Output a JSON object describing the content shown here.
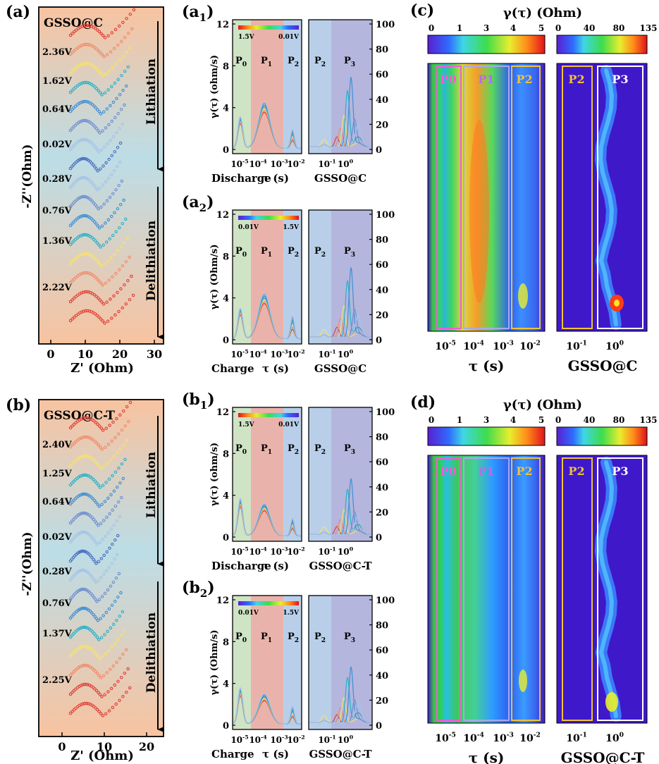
{
  "panels": {
    "a": {
      "letter": "(a)",
      "sample": "GSSO@C",
      "ylabel": "-Z''(Ohm)",
      "xlabel": "Z' (Ohm)",
      "xticks": [
        "0",
        "10",
        "20",
        "30"
      ],
      "arrow_top": "Lithiation",
      "arrow_bottom": "Delithiation",
      "voltages": [
        "2.36V",
        "1.62V",
        "0.64V",
        "0.02V",
        "0.28V",
        "0.76V",
        "1.36V",
        "2.22V"
      ]
    },
    "b": {
      "letter": "(b)",
      "sample": "GSSO@C-T",
      "ylabel": "-Z''(Ohm)",
      "xlabel": "Z' (Ohm)",
      "xticks": [
        "0",
        "10",
        "20"
      ],
      "arrow_top": "Lithiation",
      "arrow_bottom": "Delithiation",
      "voltages": [
        "2.40V",
        "1.25V",
        "0.64V",
        "0.02V",
        "0.28V",
        "0.76V",
        "1.37V",
        "2.25V"
      ]
    },
    "a1": {
      "letter": "(a",
      "sub": "1",
      "close": ")",
      "mode": "Discharge",
      "sample": "GSSO@C",
      "ylabel": "γ(τ) (ohm/s)",
      "cb_left": "1.5V",
      "cb_right": "0.01V"
    },
    "a2": {
      "letter": "(a",
      "sub": "2",
      "close": ")",
      "mode": "Charge",
      "sample": "GSSO@C",
      "ylabel": "γ(τ) (Ohm/s)",
      "cb_left": "0.01V",
      "cb_right": "1.5V"
    },
    "b1": {
      "letter": "(b",
      "sub": "1",
      "close": ")",
      "mode": "Discharge",
      "sample": "GSSO@C-T",
      "ylabel": "γ(τ) (ohm/s)",
      "cb_left": "1.5V",
      "cb_right": "0.01V"
    },
    "b2": {
      "letter": "(b",
      "sub": "2",
      "close": ")",
      "mode": "Charge",
      "sample": "GSSO@C-T",
      "ylabel": "γ(τ) (Ohm/s)",
      "cb_left": "0.01V",
      "cb_right": "1.5V"
    },
    "c": {
      "letter": "(c)",
      "title": "γ(τ) (Ohm)",
      "sample": "GSSO@C",
      "xlabel": "τ (s)"
    },
    "d": {
      "letter": "(d)",
      "title": "γ(τ) (Ohm)",
      "sample": "GSSO@C-T",
      "xlabel": "τ (s)"
    }
  },
  "common": {
    "tau_label": "τ (s)",
    "left_yticks": [
      "0",
      "4",
      "8",
      "12"
    ],
    "right_yticks": [
      "0",
      "20",
      "40",
      "60",
      "80",
      "100"
    ],
    "tau_ticks": [
      "10",
      "10",
      "10",
      "10"
    ],
    "tau_exps": [
      "-5",
      "-4",
      "-3",
      "-2"
    ],
    "tau2_ticks": [
      "10",
      "10"
    ],
    "tau2_exps": [
      "-1",
      "0"
    ],
    "peaks_left": [
      "P",
      "P",
      "P"
    ],
    "peaks_left_sub": [
      "0",
      "1",
      "2"
    ],
    "peaks_right": [
      "P",
      "P"
    ],
    "peaks_right_sub": [
      "2",
      "3"
    ],
    "cb1_ticks": [
      "0",
      "1",
      "3",
      "4",
      "5"
    ],
    "cb2_ticks": [
      "0",
      "40",
      "80",
      "135"
    ],
    "map_labels_left": [
      "P0",
      "P1",
      "P2"
    ],
    "map_labels_right": [
      "P2",
      "P3"
    ]
  },
  "colors": {
    "eis_bg_top": "#f6c7a8",
    "eis_bg_mid": "#b9dbe5",
    "shade_p0": "#cfe3c5",
    "shade_p1": "#e9b3ab",
    "shade_p2": "#b9cfe9",
    "shade_p3": "#b5b6dd",
    "curve_colors": [
      "#e0403a",
      "#f08c6a",
      "#f5e36a",
      "#27b2c8",
      "#3e8fd4",
      "#6f8fd0",
      "#a6c4e8",
      "#4a6fc0"
    ]
  },
  "chart_data": [
    {
      "id": "a",
      "type": "scatter",
      "title": "GSSO@C",
      "xlabel": "Z' (Ohm)",
      "ylabel": "-Z''(Ohm)",
      "xlim": [
        -5,
        32
      ],
      "series_voltages": [
        "2.36V",
        "1.62V",
        "0.64V",
        "0.02V",
        "0.28V",
        "0.76V",
        "1.36V",
        "2.22V"
      ],
      "offsets": [
        "stacked"
      ]
    },
    {
      "id": "b",
      "type": "scatter",
      "title": "GSSO@C-T",
      "xlabel": "Z' (Ohm)",
      "ylabel": "-Z''(Ohm)",
      "xlim": [
        -5,
        22
      ],
      "series_voltages": [
        "2.40V",
        "1.25V",
        "0.64V",
        "0.02V",
        "0.28V",
        "0.76V",
        "1.37V",
        "2.25V"
      ]
    },
    {
      "id": "a1",
      "type": "line",
      "xlabel": "τ (s)",
      "ylabel": "γ(τ) (ohm/s)",
      "ylim_left": [
        0,
        12
      ],
      "ylim_right": [
        0,
        100
      ],
      "peaks": {
        "P0": [
          2.7
        ],
        "P1": [
          4.3
        ],
        "P2": [
          1.5
        ]
      }
    },
    {
      "id": "a2",
      "type": "line",
      "xlabel": "τ (s)",
      "ylabel": "γ(τ) (Ohm/s)",
      "ylim_left": [
        0,
        12
      ],
      "ylim_right": [
        0,
        100
      ],
      "peaks": {
        "P0": [
          2.6
        ],
        "P1": [
          4.2
        ],
        "P2": [
          1.8
        ]
      }
    },
    {
      "id": "b1",
      "type": "line",
      "xlabel": "τ (s)",
      "ylabel": "γ(τ) (ohm/s)",
      "ylim_left": [
        0,
        12
      ],
      "ylim_right": [
        0,
        100
      ],
      "peaks": {
        "P0": [
          3.2
        ],
        "P1": [
          3.0
        ],
        "P2": [
          1.4
        ]
      }
    },
    {
      "id": "b2",
      "type": "line",
      "xlabel": "τ (s)",
      "ylabel": "γ(τ) (Ohm/s)",
      "ylim_left": [
        0,
        12
      ],
      "ylim_right": [
        0,
        100
      ],
      "peaks": {
        "P0": [
          3.1
        ],
        "P1": [
          2.8
        ],
        "P2": [
          1.4
        ]
      }
    },
    {
      "id": "c",
      "type": "heatmap",
      "title": "γ(τ) (Ohm)",
      "xlabel": "τ (s)",
      "colorbar_left": [
        0,
        5
      ],
      "colorbar_right": [
        0,
        135
      ]
    },
    {
      "id": "d",
      "type": "heatmap",
      "title": "γ(τ) (Ohm)",
      "xlabel": "τ (s)",
      "colorbar_left": [
        0,
        5
      ],
      "colorbar_right": [
        0,
        135
      ]
    }
  ]
}
